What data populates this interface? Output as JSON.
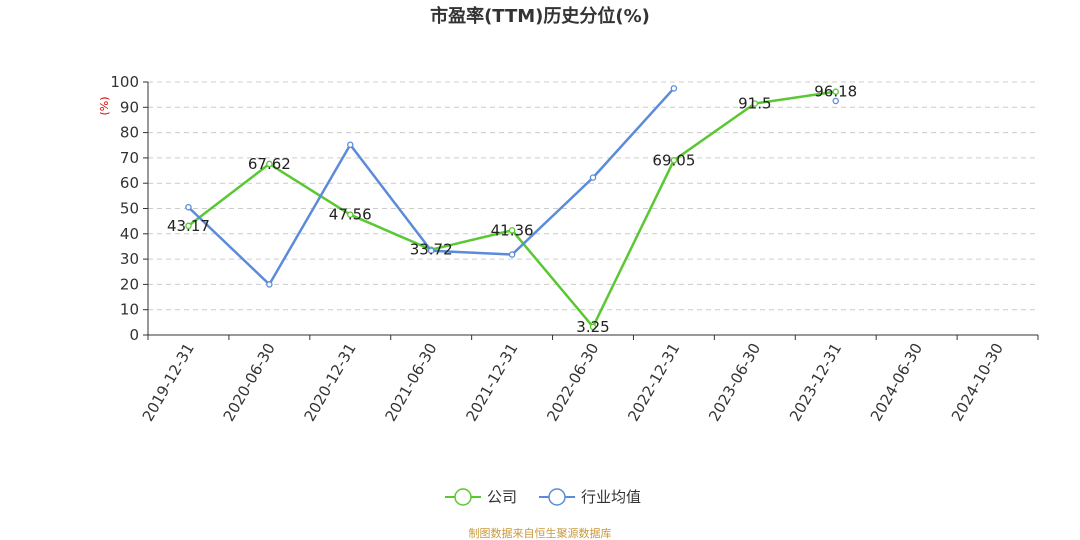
{
  "chart_data": {
    "type": "line",
    "title": "市盈率(TTM)历史分位(%)",
    "ylabel": "(%)",
    "ylim": [
      0,
      100
    ],
    "yticks": [
      0,
      10,
      20,
      30,
      40,
      50,
      60,
      70,
      80,
      90,
      100
    ],
    "categories": [
      "2019-12-31",
      "2020-06-30",
      "2020-12-31",
      "2021-06-30",
      "2021-12-31",
      "2022-06-30",
      "2022-12-31",
      "2023-06-30",
      "2023-12-31",
      "2024-06-30",
      "2024-10-30"
    ],
    "series": [
      {
        "name": "公司",
        "color": "#5ac832",
        "values": [
          43.17,
          67.62,
          47.56,
          33.72,
          41.36,
          3.25,
          69.05,
          91.5,
          96.18,
          null,
          null
        ],
        "labels": [
          "43.17",
          "67.62",
          "47.56",
          "33.72",
          "41.36",
          "3.25",
          "69.05",
          "91.5",
          "96.18",
          null,
          null
        ]
      },
      {
        "name": "行业均值",
        "color": "#5b8bd9",
        "values": [
          50.5,
          20.0,
          75.2,
          33.3,
          31.8,
          62.2,
          97.5,
          null,
          92.5,
          null,
          null
        ]
      }
    ],
    "grid": true,
    "legend_position": "bottom"
  },
  "source_note": "制图数据来自恒生聚源数据库"
}
